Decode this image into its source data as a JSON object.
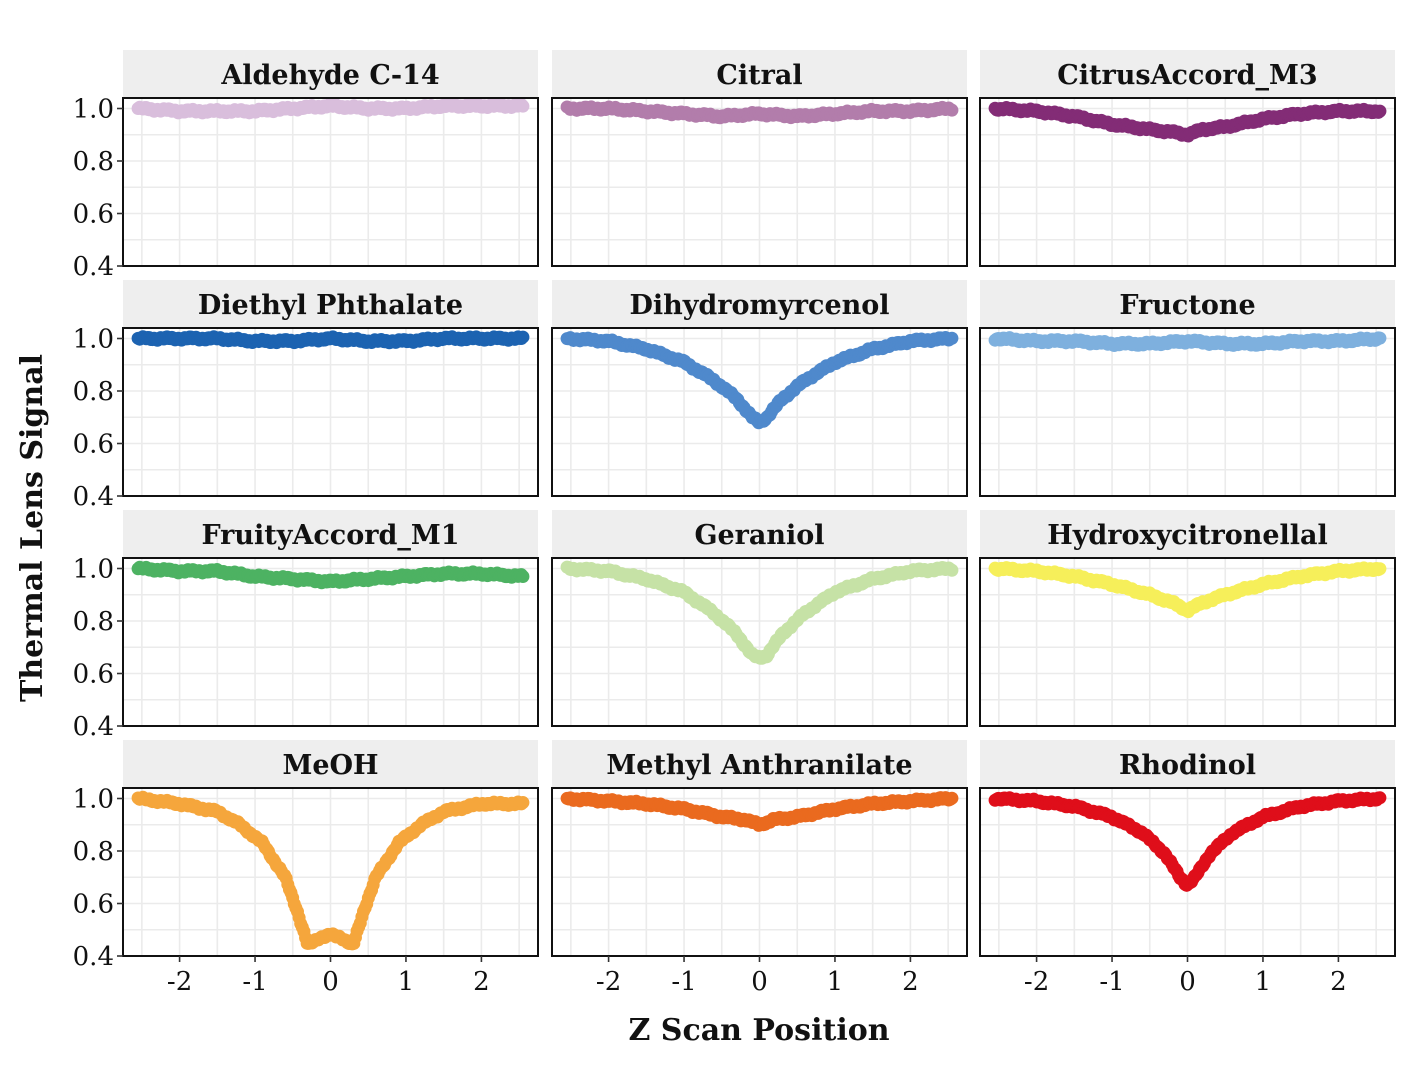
{
  "chart_data": {
    "type": "scatter",
    "layout": "facet-grid 4x3",
    "xlabel": "Z Scan Position",
    "ylabel": "Thermal Lens Signal",
    "xlim": [
      -2.75,
      2.75
    ],
    "ylim": [
      0.4,
      1.04
    ],
    "xticks": [
      -2,
      -1,
      0,
      1,
      2
    ],
    "xtick_labels": [
      "-2",
      "-1",
      "0",
      "1",
      "2"
    ],
    "yticks": [
      0.4,
      0.6,
      0.8,
      1.0
    ],
    "ytick_labels": [
      "0.4",
      "0.6",
      "0.8",
      "1.0"
    ],
    "series": [
      {
        "name": "Aldehyde C-14",
        "color": "#d9bedc",
        "x": [
          -2.55,
          -2.0,
          -1.5,
          -1.0,
          -0.5,
          0.0,
          0.5,
          1.0,
          1.5,
          2.0,
          2.55
        ],
        "y": [
          1.0,
          0.99,
          0.99,
          0.99,
          1.0,
          1.01,
          1.0,
          1.0,
          1.01,
          1.01,
          1.01
        ]
      },
      {
        "name": "Citral",
        "color": "#b27dab",
        "x": [
          -2.55,
          -2.0,
          -1.5,
          -1.0,
          -0.5,
          0.0,
          0.5,
          1.0,
          1.5,
          2.0,
          2.55
        ],
        "y": [
          1.0,
          1.0,
          0.99,
          0.98,
          0.97,
          0.98,
          0.97,
          0.98,
          0.99,
          0.99,
          1.0
        ]
      },
      {
        "name": "CitrusAccord_M3",
        "color": "#832c76",
        "x": [
          -2.55,
          -2.0,
          -1.5,
          -1.0,
          -0.5,
          -0.2,
          0.0,
          0.2,
          0.5,
          1.0,
          1.5,
          2.0,
          2.55
        ],
        "y": [
          1.0,
          0.99,
          0.97,
          0.94,
          0.92,
          0.91,
          0.9,
          0.92,
          0.93,
          0.96,
          0.98,
          0.99,
          0.99
        ]
      },
      {
        "name": "Diethyl Phthalate",
        "color": "#1c63b1",
        "x": [
          -2.55,
          -2.0,
          -1.5,
          -1.0,
          -0.5,
          0.0,
          0.5,
          1.0,
          1.5,
          2.0,
          2.55
        ],
        "y": [
          1.0,
          1.0,
          1.0,
          0.99,
          0.99,
          1.0,
          0.99,
          0.99,
          1.0,
          1.0,
          1.0
        ]
      },
      {
        "name": "Dihydromyrcenol",
        "color": "#4f89cc",
        "x": [
          -2.55,
          -2.0,
          -1.5,
          -1.0,
          -0.6,
          -0.3,
          -0.1,
          0.0,
          0.1,
          0.3,
          0.6,
          1.0,
          1.5,
          2.0,
          2.55
        ],
        "y": [
          1.0,
          0.99,
          0.96,
          0.91,
          0.84,
          0.77,
          0.7,
          0.68,
          0.7,
          0.77,
          0.84,
          0.91,
          0.96,
          0.99,
          1.0
        ]
      },
      {
        "name": "Fructone",
        "color": "#7eb0de",
        "x": [
          -2.55,
          -2.0,
          -1.5,
          -1.0,
          -0.5,
          0.0,
          0.5,
          1.0,
          1.5,
          2.0,
          2.55
        ],
        "y": [
          1.0,
          0.99,
          0.99,
          0.98,
          0.98,
          0.99,
          0.98,
          0.98,
          0.99,
          0.99,
          1.0
        ]
      },
      {
        "name": "FruityAccord_M1",
        "color": "#4db262",
        "x": [
          -2.55,
          -2.0,
          -1.5,
          -1.0,
          -0.5,
          0.0,
          0.5,
          1.0,
          1.5,
          2.0,
          2.55
        ],
        "y": [
          1.0,
          0.99,
          0.99,
          0.97,
          0.96,
          0.95,
          0.96,
          0.97,
          0.98,
          0.98,
          0.97
        ]
      },
      {
        "name": "Geraniol",
        "color": "#c6e2a6",
        "x": [
          -2.55,
          -2.0,
          -1.5,
          -1.0,
          -0.6,
          -0.3,
          -0.1,
          0.0,
          0.1,
          0.3,
          0.6,
          1.0,
          1.5,
          2.0,
          2.55
        ],
        "y": [
          1.0,
          0.99,
          0.96,
          0.91,
          0.83,
          0.75,
          0.67,
          0.66,
          0.67,
          0.75,
          0.83,
          0.91,
          0.96,
          0.99,
          1.0
        ]
      },
      {
        "name": "Hydroxycitronellal",
        "color": "#f6ef5a",
        "x": [
          -2.55,
          -2.0,
          -1.5,
          -1.0,
          -0.5,
          -0.2,
          0.0,
          0.2,
          0.5,
          1.0,
          1.5,
          2.0,
          2.55
        ],
        "y": [
          1.0,
          0.99,
          0.97,
          0.94,
          0.9,
          0.87,
          0.84,
          0.87,
          0.9,
          0.94,
          0.97,
          0.99,
          1.0
        ]
      },
      {
        "name": "MeOH",
        "color": "#f5a63c",
        "x": [
          -2.55,
          -2.0,
          -1.5,
          -1.2,
          -0.9,
          -0.6,
          -0.45,
          -0.3,
          -0.15,
          0.0,
          0.15,
          0.3,
          0.45,
          0.6,
          0.9,
          1.2,
          1.5,
          2.0,
          2.55
        ],
        "y": [
          1.0,
          0.98,
          0.95,
          0.9,
          0.83,
          0.7,
          0.58,
          0.44,
          0.47,
          0.48,
          0.47,
          0.44,
          0.58,
          0.7,
          0.83,
          0.9,
          0.95,
          0.98,
          0.98
        ]
      },
      {
        "name": "Methyl Anthranilate",
        "color": "#ea6a1f",
        "x": [
          -2.55,
          -2.0,
          -1.5,
          -1.0,
          -0.5,
          -0.2,
          0.0,
          0.2,
          0.5,
          1.0,
          1.5,
          2.0,
          2.55
        ],
        "y": [
          1.0,
          0.99,
          0.98,
          0.96,
          0.93,
          0.92,
          0.9,
          0.92,
          0.93,
          0.96,
          0.98,
          0.99,
          1.0
        ]
      },
      {
        "name": "Rhodinol",
        "color": "#df0e1a",
        "x": [
          -2.55,
          -2.0,
          -1.5,
          -1.0,
          -0.6,
          -0.3,
          -0.1,
          0.0,
          0.1,
          0.3,
          0.6,
          1.0,
          1.5,
          2.0,
          2.55
        ],
        "y": [
          1.0,
          0.99,
          0.97,
          0.93,
          0.87,
          0.79,
          0.7,
          0.67,
          0.7,
          0.79,
          0.87,
          0.93,
          0.97,
          0.99,
          1.0
        ]
      }
    ]
  }
}
